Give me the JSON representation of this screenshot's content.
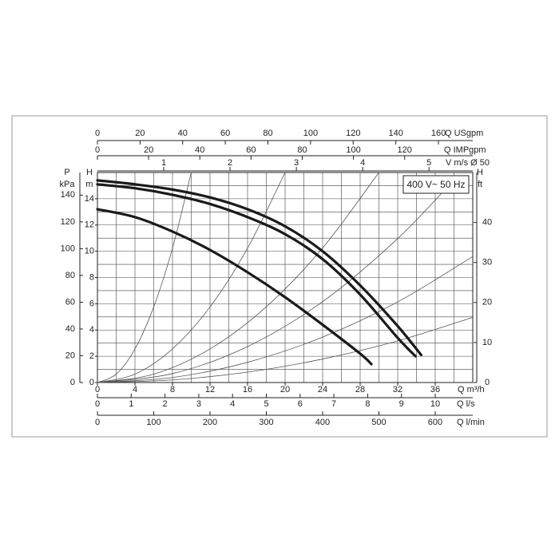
{
  "chart_data": {
    "type": "line",
    "legend_box": "400 V~ 50 Hz",
    "xlim": [
      0,
      40
    ],
    "xticks": [
      0,
      4,
      8,
      12,
      16,
      20,
      24,
      28,
      32,
      36
    ],
    "x_label": "Q m³/h",
    "ylim": [
      0,
      16
    ],
    "yticks": [
      0,
      2,
      4,
      6,
      8,
      10,
      12,
      14
    ],
    "y_label": "H",
    "y_unit": "m",
    "xgrid": [
      0,
      2,
      4,
      6,
      8,
      10,
      12,
      14,
      16,
      18,
      20,
      22,
      24,
      26,
      28,
      30,
      32,
      34,
      36,
      38,
      40
    ],
    "ygrid": [
      0,
      1,
      2,
      3,
      4,
      5,
      6,
      7,
      8,
      9,
      10,
      11,
      12,
      13,
      14,
      15,
      16
    ],
    "top_axes": [
      {
        "label": "Q USgpm",
        "lim": [
          0,
          176.1
        ],
        "ticks": [
          0,
          20,
          40,
          60,
          80,
          100,
          120,
          140,
          160
        ]
      },
      {
        "label": "Q IMPgpm",
        "lim": [
          0,
          146.6
        ],
        "ticks": [
          0,
          20,
          40,
          60,
          80,
          100,
          120
        ]
      },
      {
        "label": "V m/s Ø 50",
        "lim": [
          0,
          5.66
        ],
        "ticks": [
          1,
          2,
          3,
          4,
          5
        ]
      }
    ],
    "bottom_axes": [
      {
        "label": "Q l/s",
        "lim": [
          0,
          11.111
        ],
        "ticks": [
          0,
          1,
          2,
          3,
          4,
          5,
          6,
          7,
          8,
          9,
          10
        ]
      },
      {
        "label": "Q l/min",
        "lim": [
          0,
          666.7
        ],
        "ticks": [
          0,
          100,
          200,
          300,
          400,
          500,
          600
        ]
      }
    ],
    "left_axis": {
      "label": "P",
      "unit": "kPa",
      "lim": [
        0,
        156.9
      ],
      "ticks": [
        0,
        20,
        40,
        60,
        80,
        100,
        120,
        140
      ]
    },
    "right_axis": {
      "label": "H",
      "unit": "ft",
      "lim": [
        0,
        52.5
      ],
      "ticks": [
        0,
        10,
        20,
        30,
        40
      ]
    },
    "series": [
      {
        "color": "#1a1a1a",
        "x": [
          0,
          4,
          8,
          12,
          16,
          20,
          24,
          28,
          32,
          34.5
        ],
        "values": [
          15.4,
          15.1,
          14.7,
          14.1,
          13.2,
          11.9,
          10.0,
          7.4,
          4.3,
          2.1
        ]
      },
      {
        "color": "#1a1a1a",
        "x": [
          0,
          4,
          8,
          12,
          16,
          20,
          24,
          28,
          32,
          33.9
        ],
        "values": [
          15.1,
          14.8,
          14.3,
          13.6,
          12.6,
          11.3,
          9.4,
          6.7,
          3.4,
          2.0
        ]
      },
      {
        "color": "#1a1a1a",
        "x": [
          0,
          4,
          8,
          12,
          16,
          20,
          24,
          28,
          29.2
        ],
        "values": [
          13.2,
          12.6,
          11.5,
          10.1,
          8.4,
          6.5,
          4.4,
          2.2,
          1.4
        ]
      }
    ],
    "system_curves": [
      {
        "color": "#555555",
        "x": [
          0,
          2,
          4,
          6,
          8,
          10
        ],
        "values": [
          0,
          0.64,
          2.56,
          5.76,
          10.24,
          16
        ]
      },
      {
        "color": "#555555",
        "x": [
          0,
          4,
          8,
          12,
          16,
          20
        ],
        "values": [
          0,
          0.64,
          2.56,
          5.76,
          10.24,
          16
        ]
      },
      {
        "color": "#555555",
        "x": [
          0,
          6,
          12,
          18,
          24,
          30
        ],
        "values": [
          0,
          0.64,
          2.56,
          5.77,
          10.25,
          16
        ]
      },
      {
        "color": "#555555",
        "x": [
          0,
          8,
          16,
          24,
          32,
          38
        ],
        "values": [
          0,
          0.68,
          2.74,
          6.16,
          10.96,
          15.45
        ]
      },
      {
        "color": "#555555",
        "x": [
          0,
          8,
          16,
          24,
          32,
          40
        ],
        "values": [
          0,
          0.38,
          1.54,
          3.46,
          6.14,
          9.6
        ]
      },
      {
        "color": "#555555",
        "x": [
          0,
          8,
          16,
          24,
          32,
          40
        ],
        "values": [
          0,
          0.2,
          0.79,
          1.79,
          3.17,
          4.96
        ]
      }
    ]
  }
}
